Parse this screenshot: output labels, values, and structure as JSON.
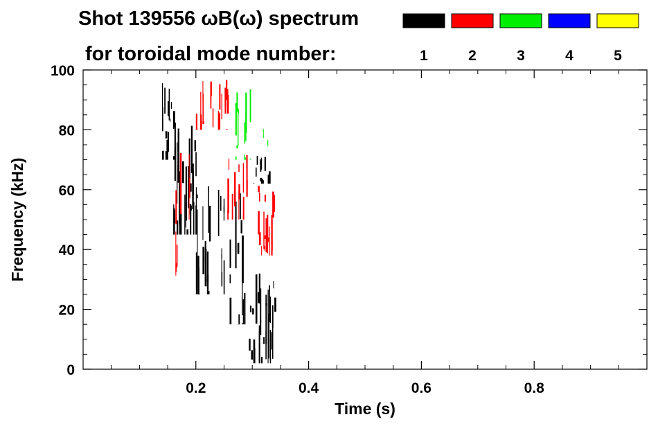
{
  "chart_data": {
    "type": "heatmap",
    "title_line1": "Shot 139556 ωB(ω) spectrum",
    "title_line2": "for toroidal mode number:",
    "xlabel": "Time (s)",
    "ylabel": "Frequency (kHz)",
    "xlim": [
      0.0,
      1.0
    ],
    "ylim": [
      0,
      100
    ],
    "x_ticks": [
      0.2,
      0.4,
      0.6,
      0.8
    ],
    "x_tick_labels": [
      "0.2",
      "0.4",
      "0.6",
      "0.8"
    ],
    "y_ticks": [
      0,
      20,
      40,
      60,
      80,
      100
    ],
    "y_tick_labels": [
      "0",
      "20",
      "40",
      "60",
      "80",
      "100"
    ],
    "legend": [
      {
        "label": "1",
        "color": "#000000"
      },
      {
        "label": "2",
        "color": "#ff0000"
      },
      {
        "label": "3",
        "color": "#00ee00"
      },
      {
        "label": "4",
        "color": "#0000ff"
      },
      {
        "label": "5",
        "color": "#ffff00"
      }
    ],
    "activity_regions": [
      {
        "mode": "1",
        "color": "#000000",
        "t": [
          0.14,
          0.16
        ],
        "f": [
          70,
          98
        ],
        "density": 0.95
      },
      {
        "mode": "1",
        "color": "#000000",
        "t": [
          0.16,
          0.2
        ],
        "f": [
          45,
          85
        ],
        "density": 0.8
      },
      {
        "mode": "1",
        "color": "#000000",
        "t": [
          0.2,
          0.25
        ],
        "f": [
          25,
          65
        ],
        "density": 0.55
      },
      {
        "mode": "1",
        "color": "#000000",
        "t": [
          0.25,
          0.29
        ],
        "f": [
          15,
          60
        ],
        "density": 0.5
      },
      {
        "mode": "1",
        "color": "#000000",
        "t": [
          0.29,
          0.34
        ],
        "f": [
          2,
          35
        ],
        "density": 0.75
      },
      {
        "mode": "1",
        "color": "#000000",
        "t": [
          0.3,
          0.33
        ],
        "f": [
          62,
          72
        ],
        "density": 0.45
      },
      {
        "mode": "2",
        "color": "#ff0000",
        "t": [
          0.15,
          0.19
        ],
        "f": [
          30,
          75
        ],
        "density": 0.35
      },
      {
        "mode": "2",
        "color": "#ff0000",
        "t": [
          0.2,
          0.26
        ],
        "f": [
          80,
          100
        ],
        "density": 0.35
      },
      {
        "mode": "2",
        "color": "#ff0000",
        "t": [
          0.25,
          0.29
        ],
        "f": [
          50,
          72
        ],
        "density": 0.3
      },
      {
        "mode": "2",
        "color": "#ff0000",
        "t": [
          0.31,
          0.34
        ],
        "f": [
          38,
          62
        ],
        "density": 0.35
      },
      {
        "mode": "3",
        "color": "#00ee00",
        "t": [
          0.27,
          0.33
        ],
        "f": [
          70,
          95
        ],
        "density": 0.3
      }
    ]
  }
}
